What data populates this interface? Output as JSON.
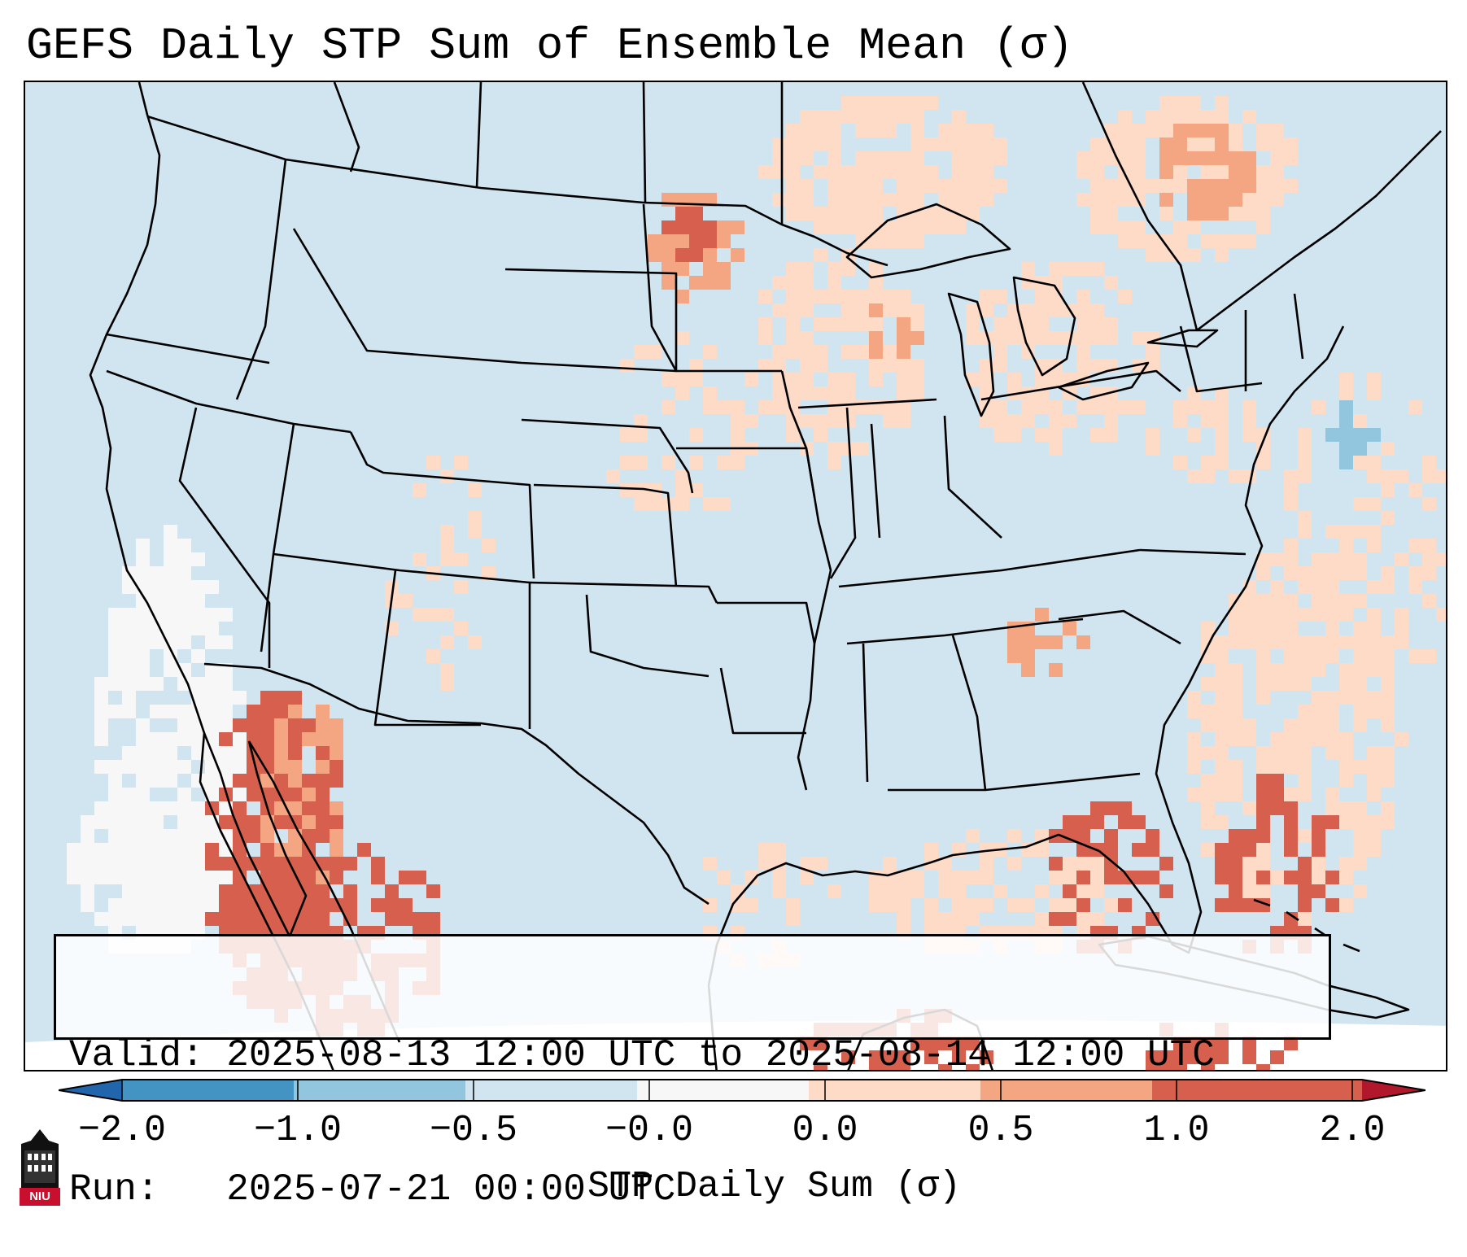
{
  "title": "GEFS Daily STP Sum of Ensemble Mean (σ)",
  "info": {
    "valid_line": "Valid: 2025-08-13 12:00 UTC to 2025-08-14 12:00 UTC",
    "run_line": "Run:   2025-07-21 00:00 UTC"
  },
  "colorbar": {
    "label": "STP Daily Sum (σ)",
    "tick_labels": [
      "−2.0",
      "−1.0",
      "−0.5",
      "−0.0",
      "0.0",
      "0.5",
      "1.0",
      "2.0"
    ],
    "bins": [
      {
        "name": "below-minus-2",
        "color": "#2166ac"
      },
      {
        "name": "minus-2-to-minus-1",
        "color": "#4393c3"
      },
      {
        "name": "minus-1-to-minus-half",
        "color": "#92c5de"
      },
      {
        "name": "minus-half-to-zero",
        "color": "#d1e5f0"
      },
      {
        "name": "zero",
        "color": "#f7f7f7"
      },
      {
        "name": "zero-to-half",
        "color": "#fddbc7"
      },
      {
        "name": "half-to-one",
        "color": "#f4a582"
      },
      {
        "name": "one-to-two",
        "color": "#d6604d"
      },
      {
        "name": "above-two",
        "color": "#b2182b"
      }
    ]
  },
  "map": {
    "background_color": "#d1e5f0",
    "border_color": "#000000",
    "anomaly_regions": [
      {
        "region": "Southwest US / Baja California",
        "class": "one-to-two"
      },
      {
        "region": "North Dakota",
        "class": "half-to-one"
      },
      {
        "region": "Upper Midwest / Wisconsin",
        "class": "zero-to-half"
      },
      {
        "region": "Southern Ontario / Quebec",
        "class": "half-to-one"
      },
      {
        "region": "Florida / Western Atlantic",
        "class": "one-to-two"
      },
      {
        "region": "Gulf of Mexico / Yucatan",
        "class": "one-to-two"
      },
      {
        "region": "Pacific off California",
        "class": "zero"
      },
      {
        "region": "Northeast Atlantic coast",
        "class": "minus-1-to-minus-half"
      }
    ]
  },
  "logo": {
    "text": "NIU"
  }
}
